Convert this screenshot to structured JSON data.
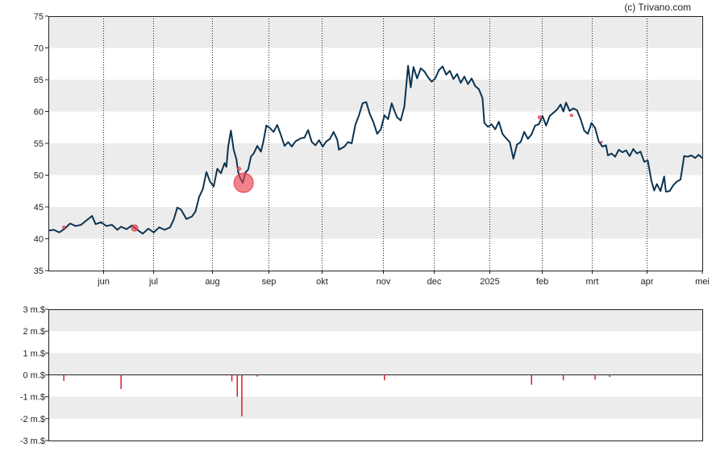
{
  "credit": "(c) Trivano.com",
  "chart_data": [
    {
      "type": "line",
      "x_ticks": [
        "jun",
        "jul",
        "aug",
        "sep",
        "okt",
        "nov",
        "dec",
        "2025",
        "feb",
        "mrt",
        "apr",
        "mei"
      ],
      "y_ticks": [
        "35",
        "40",
        "45",
        "50",
        "55",
        "60",
        "65",
        "70",
        "75"
      ],
      "ylim": [
        35,
        75
      ],
      "grid": true,
      "colors": {
        "line": "#0b3350",
        "band": "#ececec",
        "marker": "#e8414e"
      },
      "series": [
        {
          "values": [
            [
              0,
              41.3
            ],
            [
              0.3,
              41.4
            ],
            [
              0.6,
              41.0
            ],
            [
              0.9,
              41.6
            ],
            [
              1.2,
              42.4
            ],
            [
              1.5,
              42.0
            ],
            [
              1.8,
              42.2
            ],
            [
              2.1,
              42.9
            ],
            [
              2.4,
              43.6
            ],
            [
              2.6,
              42.3
            ],
            [
              2.9,
              42.6
            ],
            [
              3.2,
              42.0
            ],
            [
              3.5,
              42.2
            ],
            [
              3.8,
              41.4
            ],
            [
              4.0,
              41.9
            ],
            [
              4.3,
              41.5
            ],
            [
              4.6,
              42.1
            ],
            [
              4.9,
              41.4
            ],
            [
              5.2,
              40.8
            ],
            [
              5.5,
              41.6
            ],
            [
              5.8,
              41.0
            ],
            [
              6.1,
              41.8
            ],
            [
              6.4,
              41.4
            ],
            [
              6.7,
              41.8
            ],
            [
              6.9,
              43.0
            ],
            [
              7.1,
              44.9
            ],
            [
              7.3,
              44.6
            ],
            [
              7.6,
              43.1
            ],
            [
              7.9,
              43.5
            ],
            [
              8.1,
              44.3
            ],
            [
              8.3,
              46.6
            ],
            [
              8.5,
              47.8
            ],
            [
              8.7,
              50.5
            ],
            [
              8.9,
              49.0
            ],
            [
              9.1,
              48.2
            ],
            [
              9.3,
              51.0
            ],
            [
              9.5,
              50.3
            ],
            [
              9.7,
              51.9
            ],
            [
              9.8,
              51.3
            ],
            [
              9.9,
              54.5
            ],
            [
              10.05,
              57.0
            ],
            [
              10.2,
              54.0
            ],
            [
              10.35,
              52.5
            ],
            [
              10.45,
              50.5
            ],
            [
              10.55,
              49.6
            ],
            [
              10.7,
              48.8
            ],
            [
              10.85,
              50.4
            ],
            [
              11.0,
              50.9
            ],
            [
              11.15,
              52.9
            ],
            [
              11.3,
              53.4
            ],
            [
              11.5,
              54.6
            ],
            [
              11.7,
              53.7
            ],
            [
              11.85,
              55.5
            ],
            [
              12.0,
              57.8
            ],
            [
              12.2,
              57.4
            ],
            [
              12.4,
              56.8
            ],
            [
              12.6,
              57.9
            ],
            [
              12.8,
              56.3
            ],
            [
              13.0,
              54.6
            ],
            [
              13.2,
              55.2
            ],
            [
              13.4,
              54.5
            ],
            [
              13.6,
              55.3
            ],
            [
              13.9,
              55.8
            ],
            [
              14.1,
              55.9
            ],
            [
              14.3,
              57.1
            ],
            [
              14.5,
              55.2
            ],
            [
              14.7,
              54.7
            ],
            [
              14.9,
              55.5
            ],
            [
              15.1,
              54.5
            ],
            [
              15.3,
              55.3
            ],
            [
              15.5,
              55.7
            ],
            [
              15.7,
              56.8
            ],
            [
              15.9,
              55.6
            ],
            [
              16.0,
              54.0
            ],
            [
              16.3,
              54.5
            ],
            [
              16.5,
              55.2
            ],
            [
              16.7,
              55.0
            ],
            [
              16.9,
              57.9
            ],
            [
              17.1,
              59.4
            ],
            [
              17.3,
              61.3
            ],
            [
              17.5,
              61.5
            ],
            [
              17.7,
              59.6
            ],
            [
              17.9,
              58.3
            ],
            [
              18.1,
              56.5
            ],
            [
              18.3,
              57.2
            ],
            [
              18.5,
              59.4
            ],
            [
              18.7,
              58.8
            ],
            [
              18.9,
              61.3
            ],
            [
              19.05,
              60.1
            ],
            [
              19.2,
              59.1
            ],
            [
              19.4,
              58.6
            ],
            [
              19.6,
              60.8
            ],
            [
              19.8,
              67.2
            ],
            [
              19.95,
              63.8
            ],
            [
              20.1,
              67.0
            ],
            [
              20.3,
              65.2
            ],
            [
              20.5,
              66.8
            ],
            [
              20.7,
              66.3
            ],
            [
              20.9,
              65.4
            ],
            [
              21.1,
              64.7
            ],
            [
              21.3,
              65.2
            ],
            [
              21.5,
              66.5
            ],
            [
              21.7,
              67.1
            ],
            [
              21.9,
              65.8
            ],
            [
              22.1,
              66.4
            ],
            [
              22.3,
              65.1
            ],
            [
              22.5,
              65.9
            ],
            [
              22.7,
              64.5
            ],
            [
              22.9,
              65.5
            ],
            [
              23.1,
              64.3
            ],
            [
              23.3,
              65.2
            ],
            [
              23.5,
              64.0
            ],
            [
              23.7,
              63.5
            ],
            [
              23.9,
              62.1
            ],
            [
              24.0,
              58.2
            ],
            [
              24.2,
              57.6
            ],
            [
              24.4,
              58.0
            ],
            [
              24.6,
              57.2
            ],
            [
              24.8,
              58.4
            ],
            [
              25.0,
              56.5
            ],
            [
              25.2,
              55.8
            ],
            [
              25.4,
              55.2
            ],
            [
              25.6,
              52.6
            ],
            [
              25.8,
              54.8
            ],
            [
              26.0,
              55.2
            ],
            [
              26.2,
              56.8
            ],
            [
              26.4,
              55.7
            ],
            [
              26.6,
              56.4
            ],
            [
              26.8,
              57.8
            ],
            [
              27.0,
              58.0
            ],
            [
              27.2,
              59.3
            ],
            [
              27.4,
              57.8
            ],
            [
              27.6,
              59.3
            ],
            [
              27.8,
              59.8
            ],
            [
              28.0,
              60.3
            ],
            [
              28.2,
              61.1
            ],
            [
              28.35,
              60.0
            ],
            [
              28.5,
              61.4
            ],
            [
              28.7,
              60.1
            ],
            [
              28.9,
              60.5
            ],
            [
              29.1,
              60.2
            ],
            [
              29.3,
              58.8
            ],
            [
              29.5,
              57.0
            ],
            [
              29.7,
              56.5
            ],
            [
              29.9,
              58.2
            ],
            [
              30.1,
              57.4
            ],
            [
              30.3,
              55.3
            ],
            [
              30.5,
              54.5
            ],
            [
              30.7,
              54.7
            ],
            [
              30.8,
              53.1
            ],
            [
              31.0,
              53.4
            ],
            [
              31.2,
              52.9
            ],
            [
              31.4,
              54.0
            ],
            [
              31.6,
              53.6
            ],
            [
              31.8,
              53.9
            ],
            [
              32.0,
              53.0
            ],
            [
              32.2,
              54.1
            ],
            [
              32.4,
              53.4
            ],
            [
              32.6,
              53.7
            ],
            [
              32.8,
              52.1
            ],
            [
              33.0,
              52.3
            ],
            [
              33.2,
              49.1
            ],
            [
              33.35,
              47.6
            ],
            [
              33.5,
              48.6
            ],
            [
              33.7,
              47.5
            ],
            [
              33.9,
              49.8
            ],
            [
              34.0,
              47.4
            ],
            [
              34.2,
              47.5
            ],
            [
              34.4,
              48.4
            ],
            [
              34.6,
              49.0
            ],
            [
              34.8,
              49.3
            ],
            [
              35.0,
              53.0
            ],
            [
              35.2,
              52.9
            ],
            [
              35.4,
              53.1
            ],
            [
              35.6,
              52.7
            ],
            [
              35.8,
              53.2
            ],
            [
              36.0,
              52.7
            ]
          ]
        }
      ],
      "markers": [
        {
          "x": 0.85,
          "y": 41.8,
          "size": 1.5
        },
        {
          "x": 4.75,
          "y": 41.7,
          "size": 4
        },
        {
          "x": 10.5,
          "y": 51.0,
          "size": 2
        },
        {
          "x": 10.75,
          "y": 48.8,
          "size": 12
        },
        {
          "x": 27.05,
          "y": 59.1,
          "size": 2
        },
        {
          "x": 28.8,
          "y": 59.4,
          "size": 1.5
        },
        {
          "x": 30.45,
          "y": 55.2,
          "size": 1
        }
      ]
    },
    {
      "type": "bar",
      "y_ticks": [
        "3 m.$",
        "2 m.$",
        "1 m.$",
        "0 m.$",
        "-1 m.$",
        "-2 m.$",
        "-3 m.$"
      ],
      "ylim": [
        -3,
        3
      ],
      "grid": true,
      "colors": {
        "bar": "#dd1a2e",
        "band": "#ececec",
        "zero_line": "#222222"
      },
      "x": [
        0.85,
        4.0,
        10.1,
        10.4,
        10.65,
        11.5,
        18.5,
        26.6,
        28.35,
        30.1,
        30.9
      ],
      "values": [
        -0.28,
        -0.65,
        -0.3,
        -1.0,
        -1.9,
        -0.08,
        -0.25,
        -0.45,
        -0.25,
        -0.22,
        -0.1
      ]
    }
  ]
}
